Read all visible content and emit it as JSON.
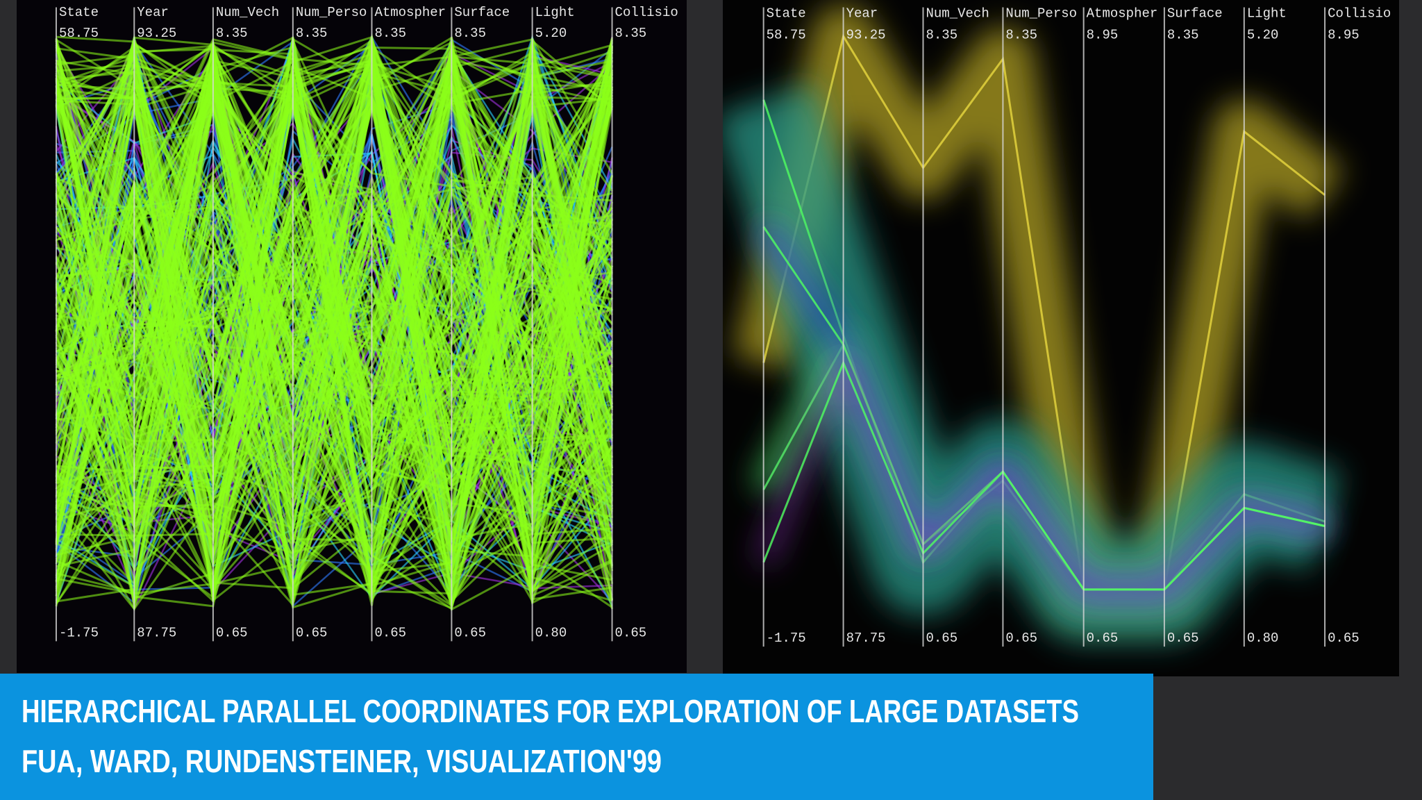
{
  "panels": [
    {
      "axes": [
        {
          "name": "State",
          "max": "58.75",
          "min": "-1.75"
        },
        {
          "name": "Year",
          "max": "93.25",
          "min": "87.75"
        },
        {
          "name": "Num_Vech",
          "max": "8.35",
          "min": "0.65"
        },
        {
          "name": "Num_Perso",
          "max": "8.35",
          "min": "0.65"
        },
        {
          "name": "Atmospher",
          "max": "8.35",
          "min": "0.65"
        },
        {
          "name": "Surface",
          "max": "8.35",
          "min": "0.65"
        },
        {
          "name": "Light",
          "max": "5.20",
          "min": "0.80"
        },
        {
          "name": "Collisio",
          "max": "8.35",
          "min": "0.65"
        }
      ]
    },
    {
      "axes": [
        {
          "name": "State",
          "max": "58.75",
          "min": "-1.75"
        },
        {
          "name": "Year",
          "max": "93.25",
          "min": "87.75"
        },
        {
          "name": "Num_Vech",
          "max": "8.35",
          "min": "0.65"
        },
        {
          "name": "Num_Perso",
          "max": "8.35",
          "min": "0.65"
        },
        {
          "name": "Atmospher",
          "max": "8.95",
          "min": "0.65"
        },
        {
          "name": "Surface",
          "max": "8.35",
          "min": "0.65"
        },
        {
          "name": "Light",
          "max": "5.20",
          "min": "0.80"
        },
        {
          "name": "Collisio",
          "max": "8.95",
          "min": "0.65"
        }
      ]
    }
  ],
  "caption": {
    "title": "HIERARCHICAL PARALLEL COORDINATES FOR EXPLORATION OF LARGE DATASETS",
    "authors": "FUA, WARD, RUNDENSTEINER, VISUALIZATION'99"
  }
}
